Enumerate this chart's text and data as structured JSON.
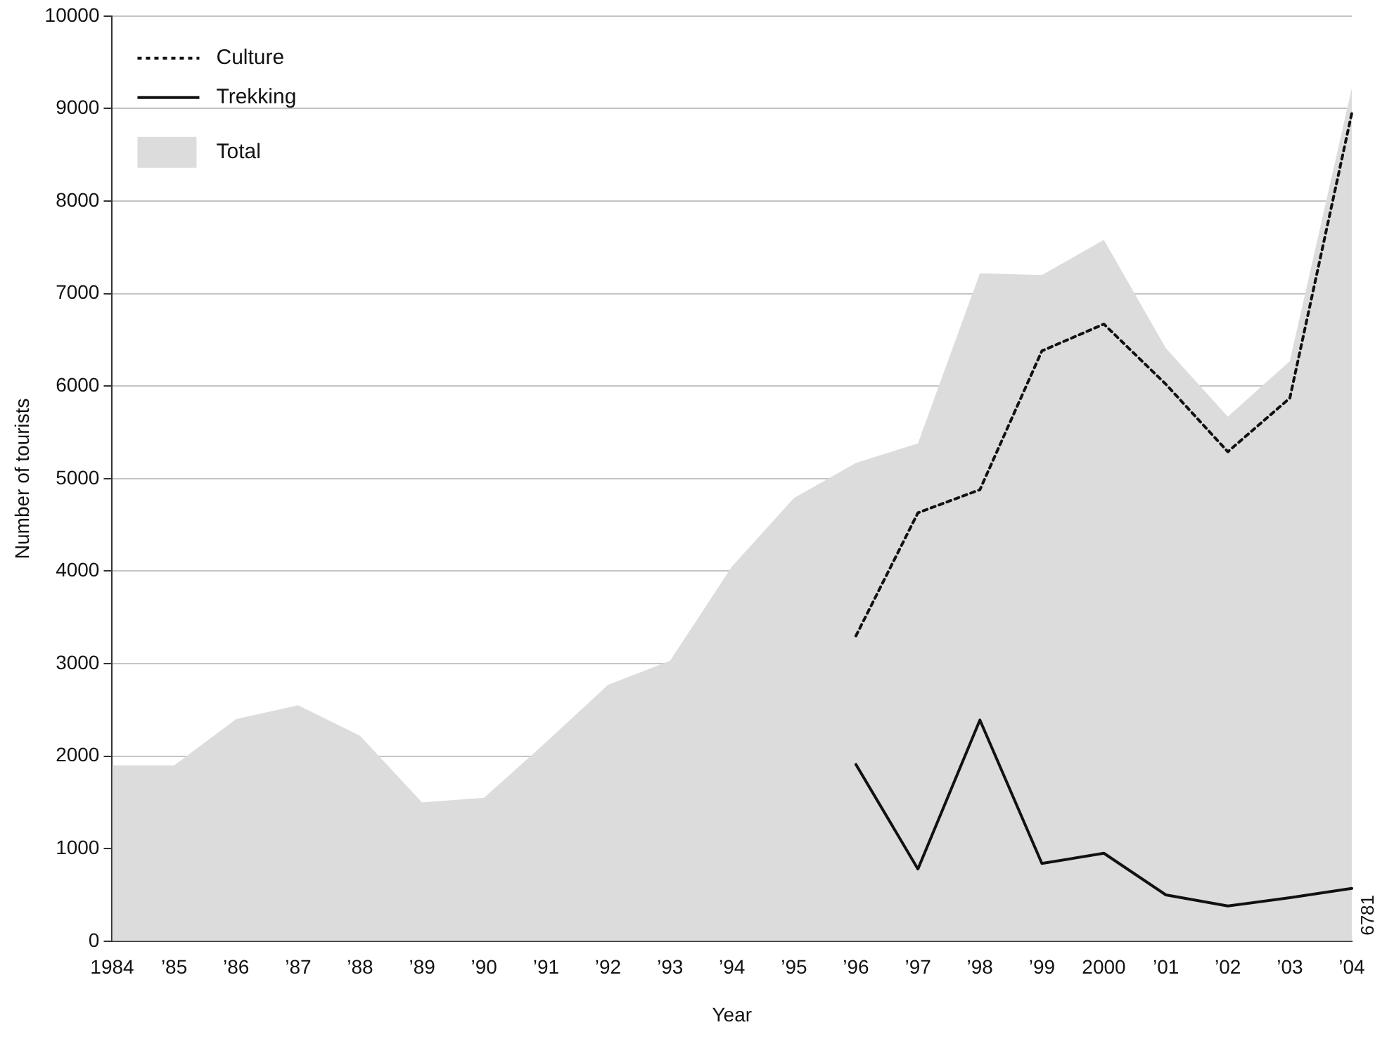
{
  "chart_data": {
    "type": "line",
    "xlabel": "Year",
    "ylabel": "Number of tourists",
    "categories": [
      "1984",
      "’85",
      "’86",
      "’87",
      "’88",
      "’89",
      "’90",
      "’91",
      "’92",
      "’93",
      "’94",
      "’95",
      "’96",
      "’97",
      "’98",
      "’99",
      "2000",
      "’01",
      "’02",
      "’03",
      "’04"
    ],
    "series": [
      {
        "name": "Culture",
        "type": "line",
        "line_style": "dotted",
        "color": "#111111",
        "values": [
          null,
          null,
          null,
          null,
          null,
          null,
          null,
          null,
          null,
          null,
          null,
          null,
          3300,
          4630,
          4880,
          6380,
          6670,
          6020,
          5290,
          5870,
          8950
        ]
      },
      {
        "name": "Trekking",
        "type": "line",
        "line_style": "solid",
        "color": "#111111",
        "values": [
          null,
          null,
          null,
          null,
          null,
          null,
          null,
          null,
          null,
          null,
          null,
          null,
          1910,
          780,
          2390,
          840,
          950,
          500,
          380,
          470,
          570
        ]
      },
      {
        "name": "Total",
        "type": "area",
        "color": "#dcdcdc",
        "values": [
          1900,
          1900,
          2400,
          2550,
          2220,
          1500,
          1550,
          2150,
          2770,
          3030,
          4050,
          4790,
          5170,
          5380,
          7220,
          7200,
          7580,
          6410,
          5670,
          6270,
          9220
        ]
      }
    ],
    "ylim": [
      0,
      10000
    ],
    "yticks": [
      0,
      1000,
      2000,
      3000,
      4000,
      5000,
      6000,
      7000,
      8000,
      9000,
      10000
    ],
    "grid": "y",
    "legend": "top left",
    "marker": "none",
    "annotations": [
      "6781"
    ]
  }
}
